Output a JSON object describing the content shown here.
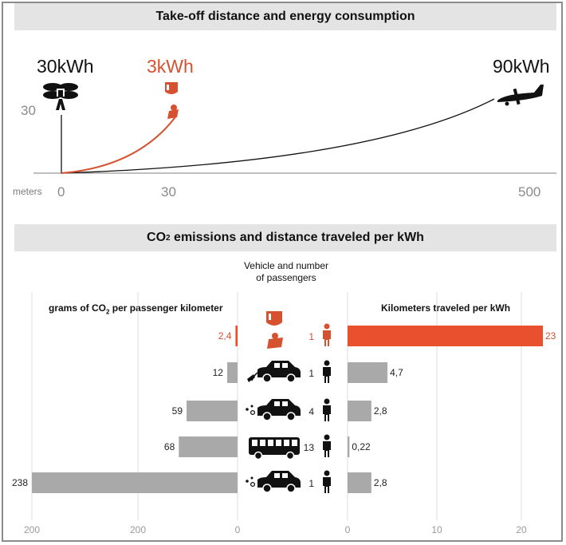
{
  "section1": {
    "title": "Take-off distance and energy consumption",
    "vehicles": [
      {
        "icon": "drone-icon",
        "energy": "30kWh",
        "distance": 0
      },
      {
        "icon": "jetpack-icon",
        "energy": "3kWh",
        "distance": 30
      },
      {
        "icon": "airplane-icon",
        "energy": "90kWh",
        "distance": 500
      }
    ],
    "y_tick": "30",
    "x_unit": "meters",
    "x_ticks": [
      "0",
      "30",
      "500"
    ]
  },
  "section2": {
    "title_prefix": "CO",
    "title_sub": "2",
    "title_suffix": " emissions and distance traveled per kWh",
    "center_header": [
      "Vehicle and number",
      "of passengers"
    ],
    "left_header_prefix": "grams of CO",
    "left_header_sub": "2",
    "left_header_suffix": " per passenger kilometer",
    "right_header": "Kilometers traveled per kWh"
  },
  "chart_data": {
    "type": "bar",
    "categories": [
      "Jetpack",
      "Electric car",
      "Car",
      "Bus",
      "Car"
    ],
    "passengers": [
      "1",
      "1",
      "4",
      "13",
      "1"
    ],
    "vehicle_icons": [
      "jetpack-icon",
      "electric-car-icon",
      "car-icon",
      "bus-icon",
      "car-icon"
    ],
    "series": [
      {
        "name": "grams of CO2 per passenger kilometer",
        "values": [
          2.4,
          12,
          59,
          68,
          238
        ],
        "labels": [
          "2,4",
          "12",
          "59",
          "68",
          "238"
        ]
      },
      {
        "name": "Kilometers traveled per kWh",
        "values": [
          23,
          4.7,
          2.8,
          0.22,
          2.8
        ],
        "labels": [
          "23",
          "4,7",
          "2,8",
          "0,22",
          "2,8"
        ]
      }
    ],
    "left_ticks": [
      "200",
      "200",
      "0"
    ],
    "right_ticks": [
      "0",
      "10",
      "20"
    ],
    "highlight_color": "#e8502e",
    "bar_color": "#a9a9a9"
  }
}
